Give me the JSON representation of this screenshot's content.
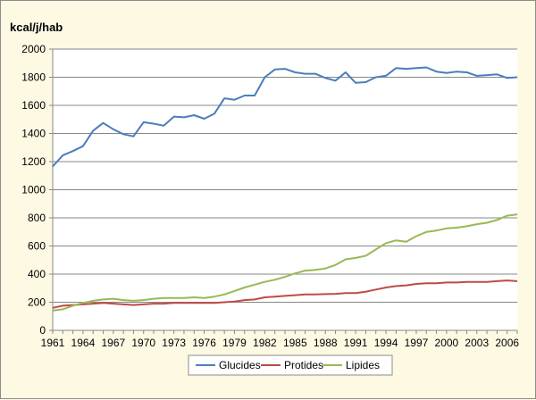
{
  "chart_data": {
    "type": "line",
    "title": "",
    "ylabel": "kcal/j/hab",
    "xlabel": "",
    "xlim": [
      1961,
      2007
    ],
    "ylim": [
      0,
      2000
    ],
    "y_ticks": [
      0,
      200,
      400,
      600,
      800,
      1000,
      1200,
      1400,
      1600,
      1800,
      2000
    ],
    "x_tick_labels": [
      "1961",
      "1964",
      "1967",
      "1970",
      "1973",
      "1976",
      "1979",
      "1982",
      "1985",
      "1988",
      "1991",
      "1994",
      "1997",
      "2000",
      "2003",
      "2006"
    ],
    "grid": "horizontal",
    "legend_position": "bottom",
    "x": [
      1961,
      1962,
      1963,
      1964,
      1965,
      1966,
      1967,
      1968,
      1969,
      1970,
      1971,
      1972,
      1973,
      1974,
      1975,
      1976,
      1977,
      1978,
      1979,
      1980,
      1981,
      1982,
      1983,
      1984,
      1985,
      1986,
      1987,
      1988,
      1989,
      1990,
      1991,
      1992,
      1993,
      1994,
      1995,
      1996,
      1997,
      1998,
      1999,
      2000,
      2001,
      2002,
      2003,
      2004,
      2005,
      2006,
      2007
    ],
    "series": [
      {
        "name": "Glucides",
        "color": "#4a7ebb",
        "values": [
          1165,
          1245,
          1275,
          1310,
          1420,
          1475,
          1430,
          1395,
          1380,
          1480,
          1470,
          1455,
          1520,
          1515,
          1530,
          1505,
          1540,
          1650,
          1640,
          1670,
          1670,
          1800,
          1855,
          1860,
          1835,
          1825,
          1825,
          1795,
          1775,
          1835,
          1760,
          1765,
          1800,
          1810,
          1865,
          1860,
          1865,
          1870,
          1840,
          1830,
          1840,
          1835,
          1810,
          1815,
          1820,
          1795,
          1800
        ]
      },
      {
        "name": "Protides",
        "color": "#be4b48",
        "values": [
          160,
          175,
          180,
          185,
          190,
          195,
          190,
          185,
          180,
          185,
          190,
          190,
          195,
          195,
          195,
          195,
          195,
          200,
          205,
          215,
          220,
          235,
          240,
          245,
          250,
          255,
          255,
          258,
          260,
          265,
          265,
          275,
          290,
          305,
          315,
          320,
          330,
          335,
          335,
          340,
          340,
          345,
          345,
          345,
          350,
          355,
          350
        ]
      },
      {
        "name": "Lipides",
        "color": "#98b954",
        "values": [
          140,
          150,
          175,
          195,
          210,
          220,
          225,
          215,
          210,
          215,
          225,
          230,
          230,
          230,
          235,
          230,
          240,
          255,
          280,
          305,
          325,
          345,
          360,
          380,
          405,
          425,
          430,
          440,
          465,
          505,
          515,
          530,
          575,
          620,
          640,
          630,
          670,
          700,
          710,
          725,
          730,
          740,
          755,
          765,
          785,
          815,
          825
        ]
      }
    ]
  }
}
